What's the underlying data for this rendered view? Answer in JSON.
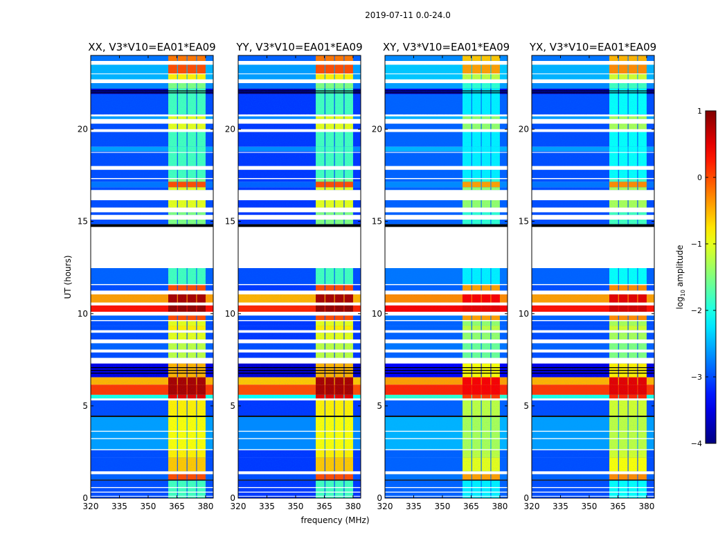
{
  "chart_data": {
    "type": "heatmap",
    "title": "2019-07-11 0.0-24.0",
    "xlabel": "frequency (MHz)",
    "ylabel": "UT (hours)",
    "xlim": [
      320,
      384
    ],
    "ylim": [
      0,
      24
    ],
    "xticks": [
      320,
      335,
      350,
      365,
      380
    ],
    "yticks": [
      0,
      5,
      10,
      15,
      20
    ],
    "colorbar": {
      "label_main": "log",
      "label_sub": "10",
      "label_rest": " amplitude",
      "range": [
        -4,
        1
      ],
      "ticks": [
        -4,
        -3,
        -2,
        -1,
        0,
        1
      ],
      "colormap": "jet"
    },
    "subbands_mhz": [
      [
        360.5,
        365.1
      ],
      [
        365.5,
        370.1
      ],
      [
        370.5,
        375.1
      ],
      [
        375.5,
        380
      ]
    ],
    "panels": [
      {
        "title": "XX, V3*V10=EA01*EA09",
        "band_offset": 0.0,
        "bg_offset": 0.0
      },
      {
        "title": "YY, V3*V10=EA01*EA09",
        "band_offset": 0.0,
        "bg_offset": -0.1
      },
      {
        "title": "XY, V3*V10=EA01*EA09",
        "band_offset": -0.4,
        "bg_offset": 0.1
      },
      {
        "title": "YX, V3*V10=EA01*EA09",
        "band_offset": -0.3,
        "bg_offset": 0.0
      }
    ],
    "rows_note": "rows: [start_hour, end_hour, background_log10_amp, rfi_band_log10_amp] ; flags: [start_hour, end_hour, 'white'|'black']",
    "rows": [
      [
        23.7,
        24.0,
        -2.8,
        -0.2
      ],
      [
        23.0,
        23.5,
        -2.5,
        0.0
      ],
      [
        22.7,
        23.0,
        -2.5,
        -0.8
      ],
      [
        22.2,
        22.5,
        -2.7,
        -1.5
      ],
      [
        21.9,
        22.2,
        -3.6,
        -1.8
      ],
      [
        20.8,
        21.9,
        -3.0,
        -1.8
      ],
      [
        20.55,
        20.7,
        -2.6,
        -1.0
      ],
      [
        20.0,
        20.3,
        -3.0,
        -1.0
      ],
      [
        19.05,
        19.85,
        -3.0,
        -1.8
      ],
      [
        18.8,
        19.05,
        -2.6,
        -1.8
      ],
      [
        18.0,
        18.8,
        -3.0,
        -1.8
      ],
      [
        17.35,
        17.8,
        -3.0,
        -1.8
      ],
      [
        17.15,
        17.3,
        -3.0,
        -1.5
      ],
      [
        16.85,
        17.15,
        -2.8,
        0.0
      ],
      [
        16.7,
        16.85,
        -3.0,
        -1.0
      ],
      [
        15.75,
        16.15,
        -3.0,
        -1.0
      ],
      [
        15.35,
        15.5,
        -3.0,
        -1.5
      ],
      [
        14.85,
        15.1,
        -3.0,
        -1.5
      ],
      [
        11.6,
        12.47,
        -2.9,
        -1.8
      ],
      [
        11.25,
        11.55,
        -3.0,
        0.0
      ],
      [
        10.6,
        11.05,
        -0.4,
        0.8
      ],
      [
        10.1,
        10.45,
        0.3,
        0.9
      ],
      [
        9.65,
        9.9,
        -2.9,
        0.0
      ],
      [
        9.35,
        9.6,
        -3.0,
        -1.0
      ],
      [
        9.1,
        9.35,
        -3.0,
        -0.8
      ],
      [
        8.6,
        8.97,
        -3.0,
        -1.0
      ],
      [
        8.05,
        8.4,
        -2.9,
        -1.2
      ],
      [
        7.6,
        7.9,
        -3.0,
        -1.2
      ],
      [
        6.55,
        7.3,
        -3.5,
        -0.5
      ],
      [
        6.15,
        6.55,
        -0.5,
        0.8
      ],
      [
        5.6,
        6.15,
        0.1,
        0.8
      ],
      [
        5.4,
        5.6,
        -2.0,
        0.5
      ],
      [
        4.47,
        5.3,
        -3.0,
        -0.8
      ],
      [
        2.6,
        4.4,
        -2.6,
        -0.9
      ],
      [
        2.2,
        2.6,
        -3.0,
        -0.8
      ],
      [
        1.45,
        2.2,
        -3.0,
        -0.6
      ],
      [
        1.0,
        1.3,
        -2.9,
        0.0
      ],
      [
        0.0,
        0.95,
        -3.0,
        -1.8
      ]
    ],
    "flags": [
      [
        23.5,
        23.7,
        "white"
      ],
      [
        22.98,
        23.02,
        "white"
      ],
      [
        22.5,
        22.7,
        "white"
      ],
      [
        22.05,
        22.1,
        "black"
      ],
      [
        21.95,
        22.0,
        "black"
      ],
      [
        20.7,
        20.75,
        "white"
      ],
      [
        20.3,
        20.55,
        "white"
      ],
      [
        19.85,
        20.0,
        "white"
      ],
      [
        18.72,
        18.76,
        "white"
      ],
      [
        17.8,
        18.0,
        "white"
      ],
      [
        17.3,
        17.35,
        "white"
      ],
      [
        16.15,
        16.7,
        "white"
      ],
      [
        15.5,
        15.75,
        "white"
      ],
      [
        15.1,
        15.35,
        "white"
      ],
      [
        14.7,
        14.85,
        "black"
      ],
      [
        12.47,
        14.7,
        "white"
      ],
      [
        11.55,
        11.6,
        "white"
      ],
      [
        11.05,
        11.25,
        "white"
      ],
      [
        10.45,
        10.6,
        "white"
      ],
      [
        9.9,
        10.1,
        "white"
      ],
      [
        9.6,
        9.65,
        "white"
      ],
      [
        8.97,
        9.1,
        "white"
      ],
      [
        8.4,
        8.6,
        "white"
      ],
      [
        7.9,
        8.05,
        "white"
      ],
      [
        7.3,
        7.6,
        "white"
      ],
      [
        7.05,
        7.1,
        "black"
      ],
      [
        6.9,
        6.95,
        "black"
      ],
      [
        6.75,
        6.8,
        "black"
      ],
      [
        5.3,
        5.4,
        "white"
      ],
      [
        4.4,
        4.47,
        "black"
      ],
      [
        3.6,
        3.65,
        "white"
      ],
      [
        3.2,
        3.25,
        "white"
      ],
      [
        2.6,
        2.65,
        "white"
      ],
      [
        1.3,
        1.45,
        "white"
      ],
      [
        0.95,
        1.0,
        "black"
      ],
      [
        0.55,
        0.6,
        "white"
      ],
      [
        0.3,
        0.35,
        "white"
      ],
      [
        0.08,
        0.12,
        "white"
      ]
    ]
  }
}
